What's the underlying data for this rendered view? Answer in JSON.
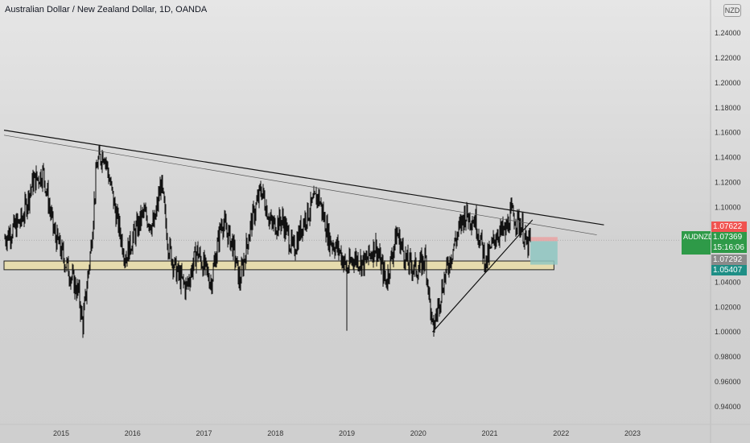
{
  "chart_title": "Australian Dollar / New Zealand Dollar, 1D, OANDA",
  "currency_badge": "NZD",
  "symbol": "AUDNZD",
  "price_tags": {
    "target": "1.07622",
    "current": "1.07369",
    "countdown": "15:16:06",
    "entry": "1.07292",
    "stop": "1.05407"
  },
  "colors": {
    "target": "#f05350",
    "current": "#2e9a48",
    "entry": "#8a8a8a",
    "stop": "#1e8f86",
    "zone": "#e6dcae",
    "profit_box": "#8fc7c2",
    "loss_box": "#e9a3a3"
  },
  "chart_data": {
    "type": "bar",
    "subtype": "daily-price-bars",
    "ylim": [
      0.93,
      1.265
    ],
    "xlim": [
      2014.2,
      2023.55
    ],
    "y_ticks": [
      "1.24000",
      "1.22000",
      "1.20000",
      "1.18000",
      "1.16000",
      "1.14000",
      "1.12000",
      "1.10000",
      "1.08000",
      "1.06000",
      "1.04000",
      "1.02000",
      "1.00000",
      "0.98000",
      "0.96000",
      "0.94000"
    ],
    "x_ticks": [
      "2015",
      "2016",
      "2017",
      "2018",
      "2019",
      "2020",
      "2021",
      "2022",
      "2023"
    ],
    "x_tick_values": [
      2015,
      2016,
      2017,
      2018,
      2019,
      2020,
      2021,
      2022,
      2023
    ],
    "price_path": [
      [
        2014.2,
        1.075
      ],
      [
        2014.45,
        1.09
      ],
      [
        2014.6,
        1.12
      ],
      [
        2014.75,
        1.128
      ],
      [
        2014.9,
        1.08
      ],
      [
        2015.1,
        1.05
      ],
      [
        2015.25,
        1.03
      ],
      [
        2015.3,
        1.005
      ],
      [
        2015.42,
        1.07
      ],
      [
        2015.5,
        1.135
      ],
      [
        2015.6,
        1.145
      ],
      [
        2015.75,
        1.1
      ],
      [
        2015.9,
        1.06
      ],
      [
        2016.0,
        1.075
      ],
      [
        2016.15,
        1.095
      ],
      [
        2016.3,
        1.085
      ],
      [
        2016.4,
        1.12
      ],
      [
        2016.5,
        1.07
      ],
      [
        2016.6,
        1.05
      ],
      [
        2016.75,
        1.035
      ],
      [
        2016.9,
        1.065
      ],
      [
        2017.1,
        1.04
      ],
      [
        2017.25,
        1.09
      ],
      [
        2017.4,
        1.07
      ],
      [
        2017.5,
        1.04
      ],
      [
        2017.65,
        1.085
      ],
      [
        2017.8,
        1.115
      ],
      [
        2017.95,
        1.085
      ],
      [
        2018.1,
        1.09
      ],
      [
        2018.25,
        1.065
      ],
      [
        2018.4,
        1.09
      ],
      [
        2018.6,
        1.11
      ],
      [
        2018.75,
        1.075
      ],
      [
        2018.9,
        1.065
      ],
      [
        2019.0,
        1.05
      ],
      [
        2019.1,
        1.06
      ],
      [
        2019.25,
        1.055
      ],
      [
        2019.4,
        1.07
      ],
      [
        2019.55,
        1.04
      ],
      [
        2019.7,
        1.08
      ],
      [
        2019.85,
        1.055
      ],
      [
        2020.0,
        1.05
      ],
      [
        2020.1,
        1.06
      ],
      [
        2020.2,
        1.0
      ],
      [
        2020.35,
        1.04
      ],
      [
        2020.5,
        1.07
      ],
      [
        2020.65,
        1.095
      ],
      [
        2020.8,
        1.09
      ],
      [
        2020.95,
        1.055
      ],
      [
        2021.1,
        1.08
      ],
      [
        2021.22,
        1.08
      ],
      [
        2021.3,
        1.095
      ],
      [
        2021.45,
        1.085
      ],
      [
        2021.52,
        1.068
      ],
      [
        2021.57,
        1.074
      ]
    ],
    "drawings": {
      "descending_trendline": [
        [
          2014.2,
          1.162
        ],
        [
          2022.6,
          1.086
        ]
      ],
      "descending_channel_line": [
        [
          2014.2,
          1.158
        ],
        [
          2022.5,
          1.078
        ]
      ],
      "rising_trendline": [
        [
          2020.2,
          1.0
        ],
        [
          2021.6,
          1.09
        ]
      ],
      "support_zone": {
        "x": [
          2014.2,
          2021.9
        ],
        "y": [
          1.05,
          1.057
        ]
      },
      "wick_2019": {
        "x": 2019.0,
        "y": [
          1.001,
          1.058
        ]
      },
      "current_price_line": 1.07369,
      "position": {
        "x": [
          2021.57,
          2021.95
        ],
        "target": 1.07622,
        "entry": 1.07292,
        "stop": 1.05407
      }
    }
  }
}
